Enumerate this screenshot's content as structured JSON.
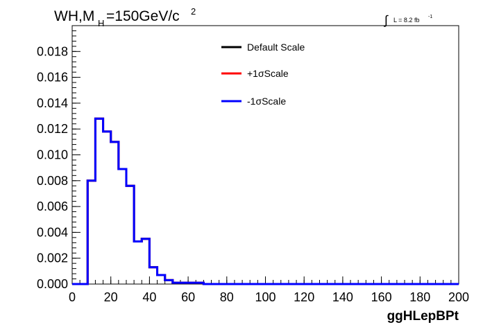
{
  "chart_data": {
    "type": "line",
    "title_main": "WH,M",
    "title_sub": "H",
    "title_rest": "=150GeV/c",
    "title_sup": "2",
    "lumi_label": "L = 8.2 fb",
    "lumi_sup": "-1",
    "xlabel": "ggHLepBPt",
    "ylabel": "",
    "xlim": [
      0,
      200
    ],
    "ylim": [
      0,
      0.02
    ],
    "x_ticks": [
      "0",
      "20",
      "40",
      "60",
      "80",
      "100",
      "120",
      "140",
      "160",
      "180",
      "200"
    ],
    "y_ticks": [
      "0.000",
      "0.002",
      "0.004",
      "0.006",
      "0.008",
      "0.010",
      "0.012",
      "0.014",
      "0.016",
      "0.018"
    ],
    "bin_edges": [
      0,
      4,
      8,
      12,
      16,
      20,
      24,
      28,
      32,
      36,
      40,
      44,
      48,
      52,
      56,
      60,
      64,
      68,
      200
    ],
    "series": [
      {
        "name": "Default Scale",
        "color": "#000000",
        "values": [
          0,
          0,
          0.008,
          0.0128,
          0.0118,
          0.011,
          0.0089,
          0.0076,
          0.0033,
          0.0035,
          0.0013,
          0.0007,
          0.0003,
          0.0001,
          0.0001,
          0.0001,
          0.0001,
          0.0
        ]
      },
      {
        "name": "+1σScale",
        "color": "#ff0000",
        "values": [
          0,
          0,
          0.008,
          0.0128,
          0.0118,
          0.011,
          0.0089,
          0.0076,
          0.0033,
          0.0035,
          0.0013,
          0.0007,
          0.0003,
          0.0001,
          0.0001,
          0.0001,
          0.0001,
          0.0
        ]
      },
      {
        "name": "-1σScale",
        "color": "#0000ff",
        "values": [
          0,
          0,
          0.008,
          0.0128,
          0.0118,
          0.011,
          0.0089,
          0.0076,
          0.0033,
          0.0035,
          0.0013,
          0.0007,
          0.0003,
          0.0001,
          0.0001,
          0.0001,
          0.0001,
          0.0
        ]
      }
    ],
    "legend_position": "top-center",
    "grid": false
  }
}
